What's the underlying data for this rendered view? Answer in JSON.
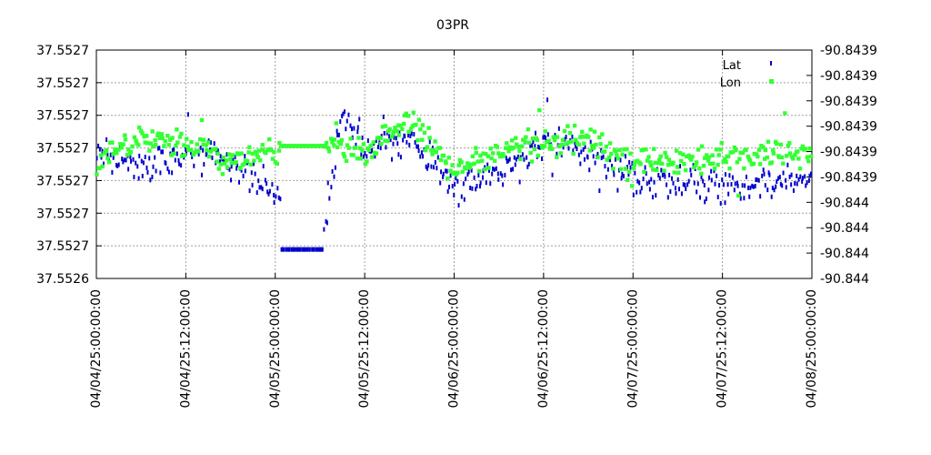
{
  "chart_data": {
    "type": "scatter",
    "title": "03PR",
    "xlabel": "",
    "ylabel": "",
    "x_ticks": [
      "04/04/25:00:00:00",
      "04/04/25:12:00:00",
      "04/05/25:00:00:00",
      "04/05/25:12:00:00",
      "04/06/25:00:00:00",
      "04/06/25:12:00:00",
      "04/07/25:00:00:00",
      "04/07/25:12:00:00",
      "04/08/25:00:00:00"
    ],
    "xlim": [
      "04/04/25:00:00:00",
      "04/08/25:00:00:00"
    ],
    "y_left_ticks": [
      "37.5527",
      "37.5527",
      "37.5527",
      "37.5527",
      "37.5527",
      "37.5527",
      "37.5527",
      "37.5526"
    ],
    "y_right_ticks": [
      "-90.8439",
      "-90.8439",
      "-90.8439",
      "-90.8439",
      "-90.8439",
      "-90.8439",
      "-90.844",
      "-90.844",
      "-90.844",
      "-90.844"
    ],
    "legend_position": "top-right",
    "grid": true,
    "series": [
      {
        "name": "Lat",
        "axis": "left",
        "color": "#0000cc",
        "marker": "small-vertical-dash",
        "trend": [
          [
            "04/04/25:00:00:00",
            0.44
          ],
          [
            "04/04/25:06:00:00",
            0.52
          ],
          [
            "04/04/25:12:00:00",
            0.44
          ],
          [
            "04/04/25:18:00:00",
            0.5
          ],
          [
            "04/05/25:00:00:00",
            0.61
          ],
          [
            "04/05/25:06:00:00",
            0.88
          ],
          [
            "04/05/25:09:00:00",
            0.28
          ],
          [
            "04/05/25:12:00:00",
            0.44
          ],
          [
            "04/05/25:18:00:00",
            0.38
          ],
          [
            "04/06/25:00:00:00",
            0.6
          ],
          [
            "04/06/25:06:00:00",
            0.55
          ],
          [
            "04/06/25:12:00:00",
            0.38
          ],
          [
            "04/06/25:18:00:00",
            0.45
          ],
          [
            "04/07/25:00:00:00",
            0.55
          ],
          [
            "04/07/25:12:00:00",
            0.6
          ],
          [
            "04/08/25:00:00:00",
            0.55
          ]
        ]
      },
      {
        "name": "Lon",
        "axis": "right",
        "color": "#33ff33",
        "marker": "small-square",
        "trend": [
          [
            "04/04/25:00:00:00",
            0.48
          ],
          [
            "04/04/25:06:00:00",
            0.38
          ],
          [
            "04/04/25:12:00:00",
            0.4
          ],
          [
            "04/04/25:18:00:00",
            0.5
          ],
          [
            "04/05/25:00:00:00",
            0.45
          ],
          [
            "04/05/25:06:00:00",
            0.42
          ],
          [
            "04/05/25:12:00:00",
            0.45
          ],
          [
            "04/05/25:18:00:00",
            0.3
          ],
          [
            "04/06/25:00:00:00",
            0.52
          ],
          [
            "04/06/25:12:00:00",
            0.4
          ],
          [
            "04/06/25:18:00:00",
            0.4
          ],
          [
            "04/07/25:00:00:00",
            0.5
          ],
          [
            "04/07/25:12:00:00",
            0.47
          ],
          [
            "04/08/25:00:00:00",
            0.45
          ]
        ]
      }
    ],
    "flat_segments": [
      {
        "series": "Lat",
        "from": "04/05/25:00:45:00",
        "to": "04/05/25:06:30:00",
        "level": 0.873
      },
      {
        "series": "Lon",
        "from": "04/05/25:00:45:00",
        "to": "04/05/25:06:30:00",
        "level": 0.42
      }
    ]
  }
}
